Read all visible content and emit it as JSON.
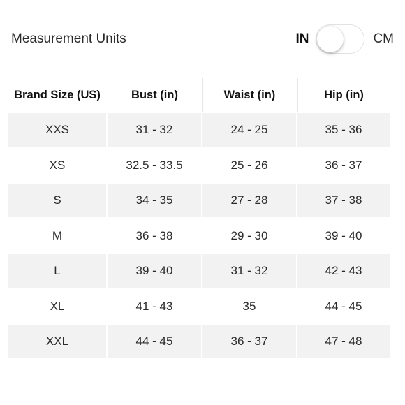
{
  "units": {
    "label": "Measurement Units",
    "in_label": "IN",
    "cm_label": "CM",
    "selected": "IN"
  },
  "table": {
    "headers": [
      "Brand Size (US)",
      "Bust (in)",
      "Waist (in)",
      "Hip (in)"
    ],
    "rows": [
      [
        "XXS",
        "31 - 32",
        "24 - 25",
        "35 - 36"
      ],
      [
        "XS",
        "32.5 - 33.5",
        "25 - 26",
        "36 - 37"
      ],
      [
        "S",
        "34 - 35",
        "27 - 28",
        "37 - 38"
      ],
      [
        "M",
        "36 - 38",
        "29 - 30",
        "39 - 40"
      ],
      [
        "L",
        "39 - 40",
        "31 - 32",
        "42 - 43"
      ],
      [
        "XL",
        "41 - 43",
        "35",
        "44 - 45"
      ],
      [
        "XXL",
        "44 - 45",
        "36 - 37",
        "47 - 48"
      ]
    ]
  },
  "colors": {
    "shaded_row": "#f2f2f2",
    "text": "#2a2a2a"
  }
}
